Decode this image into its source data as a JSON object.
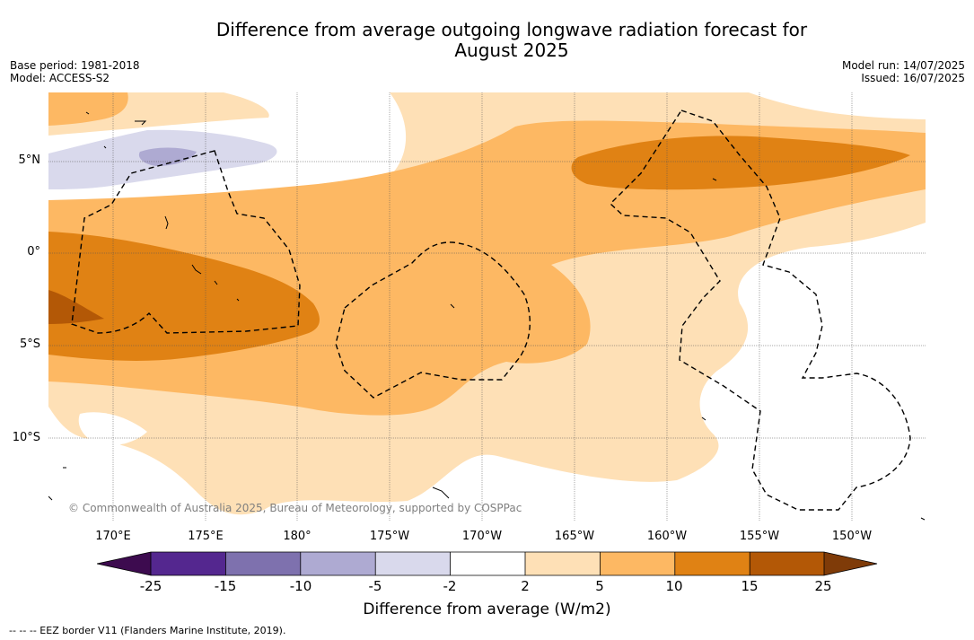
{
  "title_line1": "Difference from average outgoing longwave radiation forecast for",
  "title_line2": "August 2025",
  "base_period": "Base period: 1981-2018",
  "model": "Model: ACCESS-S2",
  "model_run": "Model run: 14/07/2025",
  "issued": "Issued: 16/07/2025",
  "lat_labels": [
    "5°N",
    "0°",
    "5°S",
    "10°S"
  ],
  "lon_labels": [
    "170°E",
    "175°E",
    "180°",
    "175°W",
    "170°W",
    "165°W",
    "160°W",
    "155°W",
    "150°W"
  ],
  "copyright": "© Commonwealth of Australia 2025, Bureau of Meteorology, supported by COSPPac",
  "colorbar": {
    "ticks": [
      "-25",
      "-15",
      "-10",
      "-5",
      "-2",
      "2",
      "5",
      "10",
      "15",
      "25"
    ],
    "label": "Difference from average (W/m2)",
    "colors": {
      "below_-25": "#3d0b4f",
      "-25_-15": "#54278f",
      "-15_-10": "#7e71ae",
      "-10_-5": "#aeaad2",
      "-5_-2": "#d9d9ec",
      "-2_2": "#ffffff",
      "2_5": "#fee0b6",
      "5_10": "#fdb863",
      "10_15": "#e08214",
      "15_25": "#b35806",
      "above_25": "#7f3b08"
    }
  },
  "footnote": "--  --  -- EEZ border V11 (Flanders Marine Institute, 2019)."
}
